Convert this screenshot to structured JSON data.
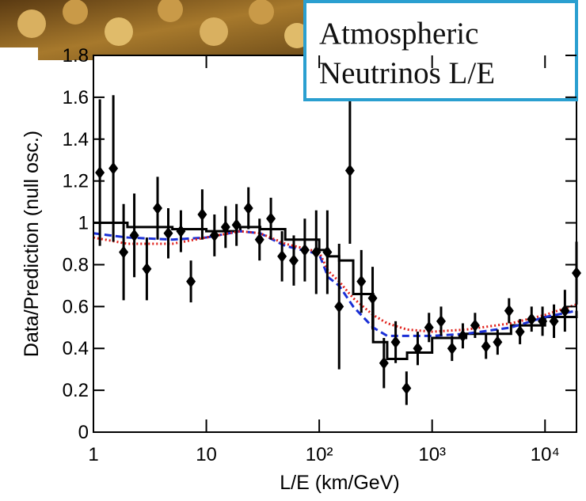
{
  "chart_data": {
    "type": "scatter",
    "xlabel": "L/E (km/GeV)",
    "ylabel": "Data/Prediction (null osc.)",
    "annotation": [
      "Atmospheric",
      "Neutrinos L/E"
    ],
    "xscale": "log",
    "xlim": [
      1,
      19000
    ],
    "ylim": [
      0,
      1.8
    ],
    "xticks": [
      1,
      10,
      {
        "value": 100,
        "label": "10²"
      },
      {
        "value": 1000,
        "label": "10³"
      },
      {
        "value": 10000,
        "label": "10⁴"
      }
    ],
    "yticks": [
      0,
      0.2,
      0.4,
      0.6,
      0.8,
      1,
      1.2,
      1.4,
      1.6,
      1.8
    ],
    "series": [
      {
        "type": "step",
        "color": "#000000",
        "dash": "none",
        "x": [
          1,
          2,
          5,
          10,
          20,
          30,
          50,
          100,
          120,
          150,
          200,
          300,
          400,
          600,
          1000,
          2000,
          5000,
          10000,
          19000
        ],
        "values": [
          1.0,
          0.98,
          0.97,
          0.96,
          0.98,
          0.97,
          0.92,
          0.87,
          0.84,
          0.82,
          0.66,
          0.43,
          0.35,
          0.38,
          0.45,
          0.47,
          0.51,
          0.55,
          0.58
        ]
      },
      {
        "type": "line",
        "color": "#1a2fd6",
        "dash": "9 5",
        "x": [
          1,
          2,
          5,
          10,
          20,
          30,
          50,
          100,
          120,
          150,
          200,
          300,
          400,
          600,
          1000,
          2000,
          5000,
          10000,
          19000
        ],
        "values": [
          0.95,
          0.93,
          0.92,
          0.93,
          0.96,
          0.95,
          0.89,
          0.85,
          0.74,
          0.7,
          0.6,
          0.5,
          0.46,
          0.46,
          0.46,
          0.47,
          0.5,
          0.55,
          0.58
        ]
      },
      {
        "type": "line",
        "color": "#e0201a",
        "dash": "2 3",
        "x": [
          1,
          2,
          5,
          10,
          20,
          30,
          50,
          100,
          120,
          150,
          200,
          300,
          400,
          600,
          1000,
          2000,
          5000,
          10000,
          19000
        ],
        "values": [
          0.93,
          0.9,
          0.9,
          0.93,
          0.96,
          0.95,
          0.9,
          0.86,
          0.77,
          0.72,
          0.64,
          0.56,
          0.52,
          0.49,
          0.48,
          0.49,
          0.52,
          0.56,
          0.61
        ]
      },
      {
        "type": "errorbar",
        "color": "#000000",
        "x": [
          1.14,
          1.5,
          1.85,
          2.3,
          2.97,
          3.7,
          4.6,
          5.95,
          7.3,
          9.2,
          11.8,
          14.8,
          18.5,
          23.6,
          29.6,
          37.3,
          46.8,
          59.5,
          74.5,
          94,
          118,
          150,
          187,
          236,
          297,
          374,
          475,
          593,
          745,
          938,
          1200,
          1500,
          1870,
          2400,
          3000,
          3800,
          4800,
          6000,
          7600,
          9500,
          12000,
          15000,
          19000
        ],
        "values": [
          1.24,
          1.26,
          0.86,
          0.94,
          0.78,
          1.07,
          0.95,
          0.96,
          0.72,
          1.04,
          0.94,
          0.98,
          0.99,
          1.07,
          0.92,
          1.02,
          0.84,
          0.82,
          0.87,
          0.86,
          0.86,
          0.6,
          1.25,
          0.72,
          0.64,
          0.33,
          0.43,
          0.21,
          0.4,
          0.5,
          0.53,
          0.4,
          0.46,
          0.51,
          0.41,
          0.43,
          0.58,
          0.48,
          0.54,
          0.53,
          0.53,
          0.58,
          0.76
        ],
        "errors": [
          0.35,
          0.35,
          0.23,
          0.2,
          0.15,
          0.15,
          0.12,
          0.1,
          0.1,
          0.12,
          0.1,
          0.1,
          0.1,
          0.1,
          0.1,
          0.1,
          0.12,
          0.12,
          0.15,
          0.2,
          0.2,
          0.3,
          0.35,
          0.15,
          0.15,
          0.12,
          0.1,
          0.08,
          0.08,
          0.07,
          0.07,
          0.06,
          0.06,
          0.06,
          0.06,
          0.06,
          0.06,
          0.06,
          0.06,
          0.07,
          0.08,
          0.1,
          0.15
        ]
      }
    ]
  }
}
